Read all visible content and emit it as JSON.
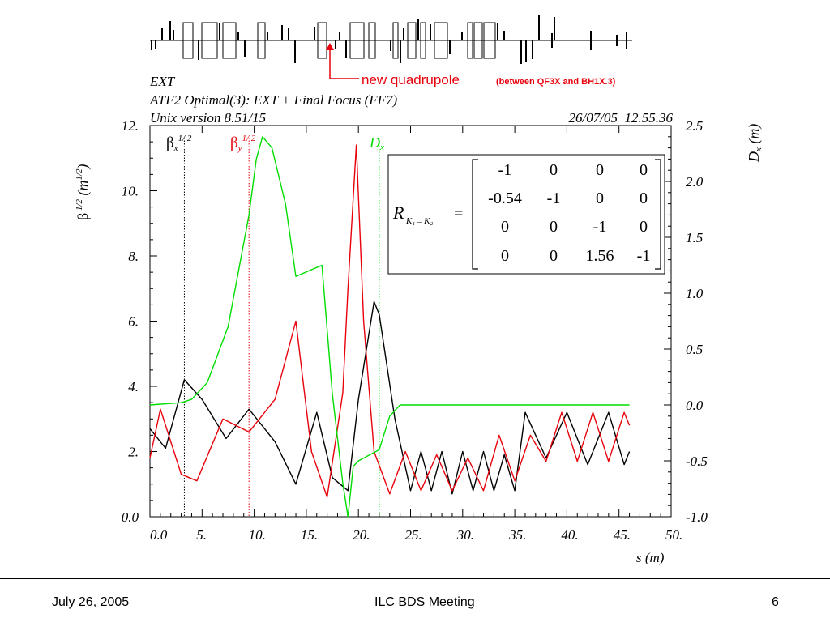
{
  "header": {
    "line1": "EXT",
    "line2": "ATF2 Optimal(3): EXT + Final Focus (FF7)",
    "line3": "Unix version 8.51/15",
    "timestamp": "26/07/05  12.55.36"
  },
  "annotation": {
    "main": "new quadrupole",
    "detail": "(between QF3X and BH1X.3)",
    "color": "#e8000b"
  },
  "matrix": {
    "symbol": "R",
    "subscript": "K₁→K₂",
    "equals": "=",
    "rows": [
      [
        "-1",
        "0",
        "0",
        "0"
      ],
      [
        "-0.54",
        "-1",
        "0",
        "0"
      ],
      [
        "0",
        "0",
        "-1",
        "0"
      ],
      [
        "0",
        "0",
        "1.56",
        "-1"
      ]
    ]
  },
  "legend": {
    "betax": {
      "base": "β",
      "sub": "x",
      "sup": "1/ 2",
      "color": "#000000"
    },
    "betay": {
      "base": "β",
      "sub": "y",
      "sup": "1/ 2",
      "color": "#e8000b"
    },
    "dx": {
      "base": "D",
      "sub": "x",
      "color": "#00dd00"
    }
  },
  "chart_data": {
    "type": "line",
    "xlabel": "s (m)",
    "ylabel_left": "β 1/2  (m1/2)",
    "ylabel_right": "Dx  (m)",
    "xlim": [
      0,
      50
    ],
    "ylim_left": [
      0,
      12
    ],
    "ylim_right": [
      -1.0,
      2.5
    ],
    "x_ticks": [
      "0.0",
      "5.",
      "10.",
      "15.",
      "20.",
      "25.",
      "30.",
      "35.",
      "40.",
      "45.",
      "50."
    ],
    "y_left_ticks": [
      "0.0",
      "2.",
      "4.",
      "6.",
      "8.",
      "10.",
      "12."
    ],
    "y_right_ticks": [
      "-1.0",
      "-0.5",
      "0.0",
      "0.5",
      "1.0",
      "1.5",
      "2.0",
      "2.5"
    ],
    "series": [
      {
        "name": "βx1/2",
        "axis": "left",
        "color": "#000000",
        "x": [
          0.0,
          1.5,
          3.3,
          5.0,
          7.3,
          9.5,
          12.0,
          14.0,
          16.0,
          17.5,
          19.0,
          20.0,
          21.5,
          22.0,
          23.5,
          25.0,
          26.0,
          27.0,
          28.0,
          29.0,
          30.0,
          31.0,
          32.0,
          33.0,
          34.0,
          35.0,
          36.0,
          38.0,
          40.0,
          42.0,
          44.0,
          45.5,
          46.0
        ],
        "y": [
          2.7,
          2.1,
          4.2,
          3.6,
          2.4,
          3.3,
          2.3,
          1.0,
          3.2,
          1.2,
          0.8,
          3.6,
          6.6,
          6.2,
          3.0,
          0.8,
          2.0,
          0.8,
          2.0,
          0.7,
          2.0,
          0.8,
          2.0,
          0.8,
          1.9,
          0.8,
          3.2,
          1.8,
          3.2,
          1.6,
          3.2,
          1.6,
          2.0
        ]
      },
      {
        "name": "βy1/2",
        "axis": "left",
        "color": "#e8000b",
        "x": [
          0.0,
          1.0,
          3.0,
          4.5,
          7.0,
          9.5,
          12.0,
          14.0,
          15.5,
          17.0,
          18.5,
          19.0,
          19.8,
          20.5,
          21.5,
          23.0,
          24.5,
          26.0,
          27.5,
          29.0,
          30.5,
          32.0,
          33.5,
          35.0,
          36.5,
          38.0,
          39.5,
          41.0,
          42.5,
          44.0,
          45.5,
          46.0
        ],
        "y": [
          1.8,
          3.3,
          1.3,
          1.1,
          3.0,
          2.6,
          3.6,
          6.0,
          2.0,
          0.6,
          3.8,
          7.0,
          11.4,
          6.0,
          2.0,
          0.7,
          2.0,
          0.8,
          1.9,
          0.8,
          1.8,
          0.8,
          2.5,
          1.1,
          2.5,
          1.7,
          3.2,
          1.7,
          3.2,
          1.7,
          3.2,
          2.8
        ]
      },
      {
        "name": "Dx",
        "axis": "right",
        "color": "#00dd00",
        "x": [
          0.0,
          3.0,
          4.0,
          5.5,
          7.5,
          9.5,
          10.2,
          10.8,
          11.7,
          13.0,
          14.0,
          16.5,
          17.5,
          18.5,
          19.0,
          19.5,
          20.0,
          22.0,
          23.0,
          24.0,
          46.0
        ],
        "y": [
          0.0,
          0.02,
          0.05,
          0.2,
          0.7,
          1.7,
          2.2,
          2.4,
          2.3,
          1.8,
          1.15,
          1.25,
          0.1,
          -0.7,
          -1.0,
          -0.55,
          -0.5,
          -0.4,
          -0.1,
          0.0,
          0.0
        ]
      }
    ],
    "markers": [
      {
        "series": "βx1/2",
        "x": 3.3
      },
      {
        "series": "βy1/2",
        "x": 9.5
      },
      {
        "series": "Dx",
        "x": 22.0
      }
    ]
  },
  "footer": {
    "date": "July 26, 2005",
    "title": "ILC BDS Meeting",
    "page": "6"
  }
}
